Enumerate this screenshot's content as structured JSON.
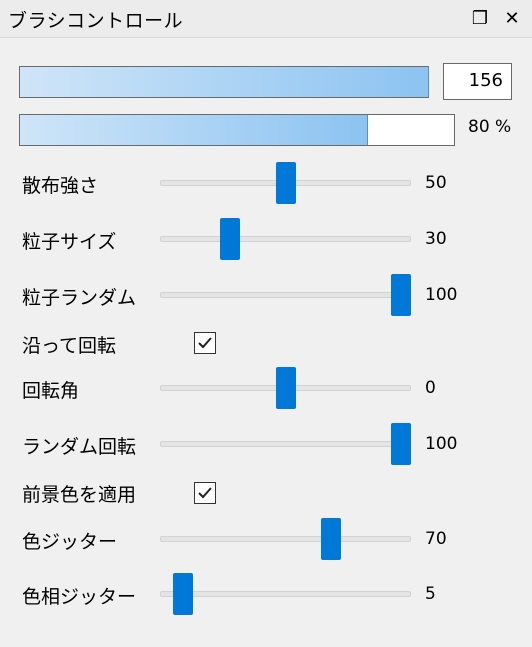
{
  "panel": {
    "title": "ブラシコントロール",
    "float_icon": "❐",
    "close_icon": "✕"
  },
  "size_bar": {
    "level": 1.0,
    "value": "156"
  },
  "opacity_bar": {
    "level": 0.8,
    "value": "80 %"
  },
  "sliders": [
    {
      "label": "散布強さ",
      "value": "50",
      "level": 0.5
    },
    {
      "label": "粒子サイズ",
      "value": "30",
      "level": 0.28
    },
    {
      "label": "粒子ランダム",
      "value": "100",
      "level": 0.96
    },
    {
      "label": "回転角",
      "value": "0",
      "level": 0.5
    },
    {
      "label": "ランダム回転",
      "value": "100",
      "level": 0.96
    },
    {
      "label": "色ジッター",
      "value": "70",
      "level": 0.68
    },
    {
      "label": "色相ジッター",
      "value": "5",
      "level": 0.09
    }
  ],
  "checkboxes": [
    {
      "label": "沿って回転",
      "checked": true
    },
    {
      "label": "前景色を適用",
      "checked": true
    }
  ],
  "accent": "#0078d7"
}
